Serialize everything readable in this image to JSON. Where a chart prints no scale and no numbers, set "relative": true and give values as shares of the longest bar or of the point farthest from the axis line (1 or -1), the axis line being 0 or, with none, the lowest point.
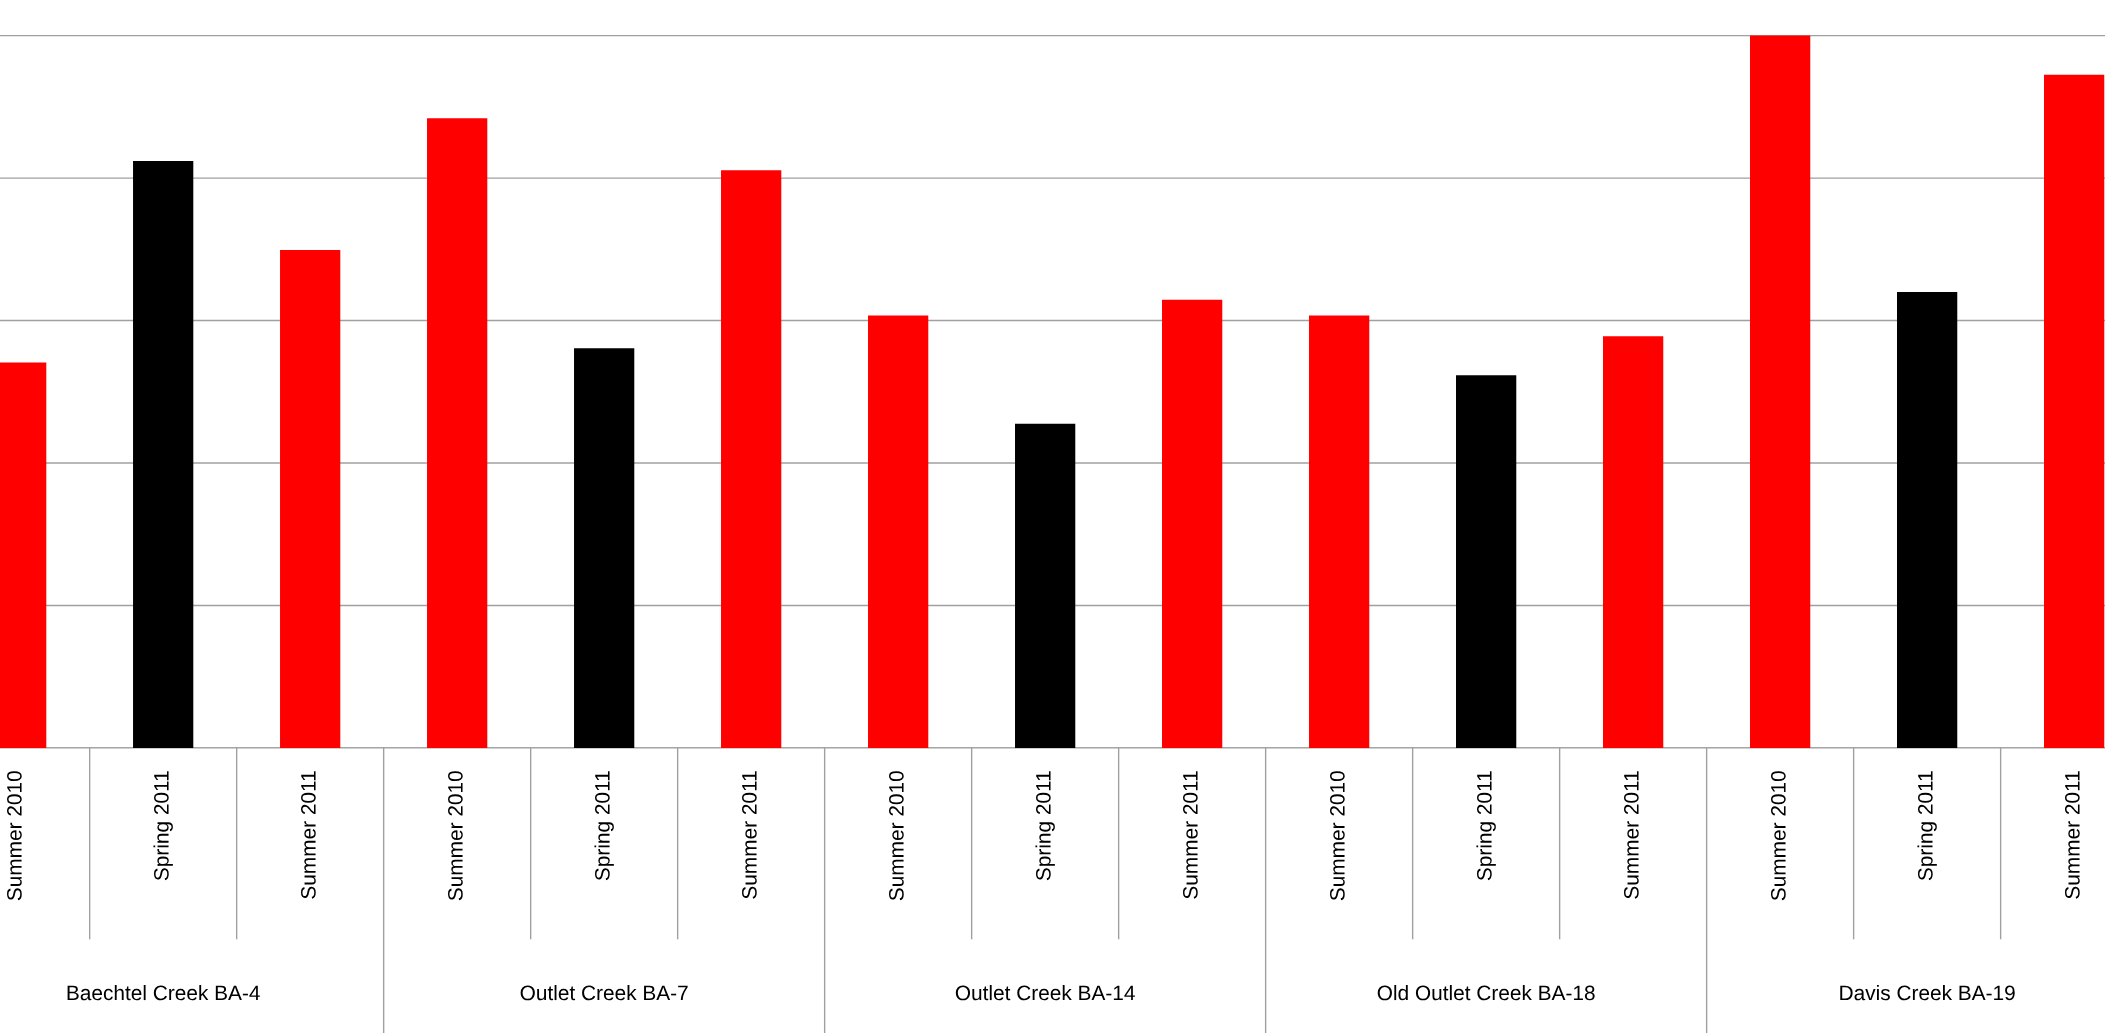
{
  "chart_data": {
    "type": "bar",
    "relative": true,
    "grid": "y",
    "legend": false,
    "categories": [
      "Summer 2010",
      "Spring 2011",
      "Summer 2011",
      "Summer 2010",
      "Spring 2011",
      "Summer 2011",
      "Summer 2010",
      "Spring 2011",
      "Summer 2011",
      "Summer 2010",
      "Spring 2011",
      "Summer 2011",
      "Summer 2010",
      "Spring 2011",
      "Summer 2011"
    ],
    "values": [
      0.541,
      0.824,
      0.699,
      0.884,
      0.561,
      0.811,
      0.607,
      0.455,
      0.629,
      0.607,
      0.523,
      0.578,
      1.0,
      0.64,
      0.945
    ],
    "colors": [
      "#ff0000",
      "#000000",
      "#ff0000",
      "#ff0000",
      "#000000",
      "#ff0000",
      "#ff0000",
      "#000000",
      "#ff0000",
      "#ff0000",
      "#000000",
      "#ff0000",
      "#ff0000",
      "#000000",
      "#ff0000"
    ],
    "annotations": [
      "Baechtel Creek BA-4",
      "Outlet Creek BA-7",
      "Outlet Creek BA-14",
      "Old Outlet Creek BA-18",
      "Davis Creek BA-19"
    ]
  }
}
